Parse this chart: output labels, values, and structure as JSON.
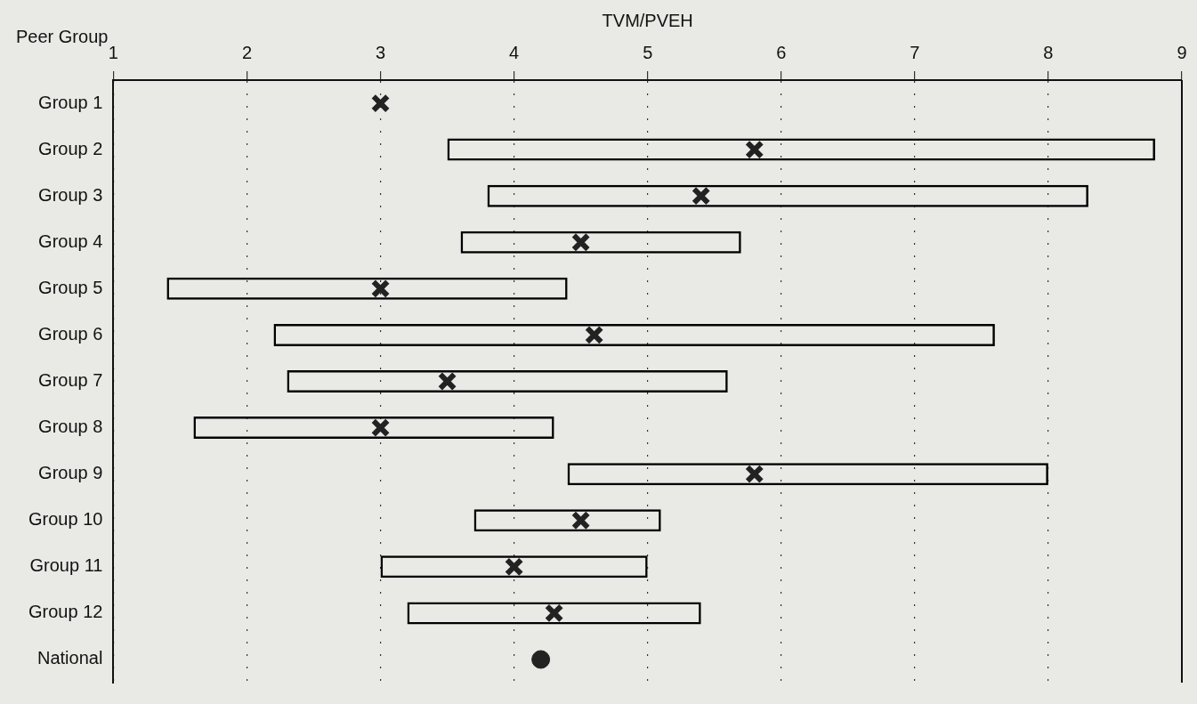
{
  "chart_data": {
    "type": "bar",
    "orientation": "horizontal",
    "xlabel": "TVM/PVEH",
    "ylabel": "Peer Group",
    "categories": [
      "Group 1",
      "Group 2",
      "Group 3",
      "Group 4",
      "Group 5",
      "Group 6",
      "Group 7",
      "Group 8",
      "Group 9",
      "Group 10",
      "Group 11",
      "Group 12",
      "National"
    ],
    "series": [
      {
        "color": "#000000",
        "base": [
          null,
          3.5,
          3.8,
          3.6,
          1.4,
          2.2,
          2.3,
          1.6,
          4.4,
          3.7,
          3.0,
          3.2,
          null
        ],
        "values": [
          null,
          5.3,
          4.5,
          2.1,
          3.0,
          5.4,
          3.3,
          2.7,
          3.6,
          1.4,
          2.0,
          2.2,
          null
        ]
      },
      {
        "type": "scatter",
        "color": "#222222",
        "marker": "cross",
        "values": [
          3.0,
          5.8,
          5.4,
          4.5,
          3.0,
          4.6,
          3.5,
          3.0,
          5.8,
          4.5,
          4.0,
          4.3,
          null
        ]
      },
      {
        "type": "scatter",
        "color": "#222222",
        "marker": "circle",
        "values": [
          null,
          null,
          null,
          null,
          null,
          null,
          null,
          null,
          null,
          null,
          null,
          null,
          4.2
        ]
      }
    ],
    "xlim": [
      1,
      9
    ],
    "xticks": [
      1,
      2,
      3,
      4,
      5,
      6,
      7,
      8,
      9
    ],
    "grid": "x",
    "legend": false
  }
}
